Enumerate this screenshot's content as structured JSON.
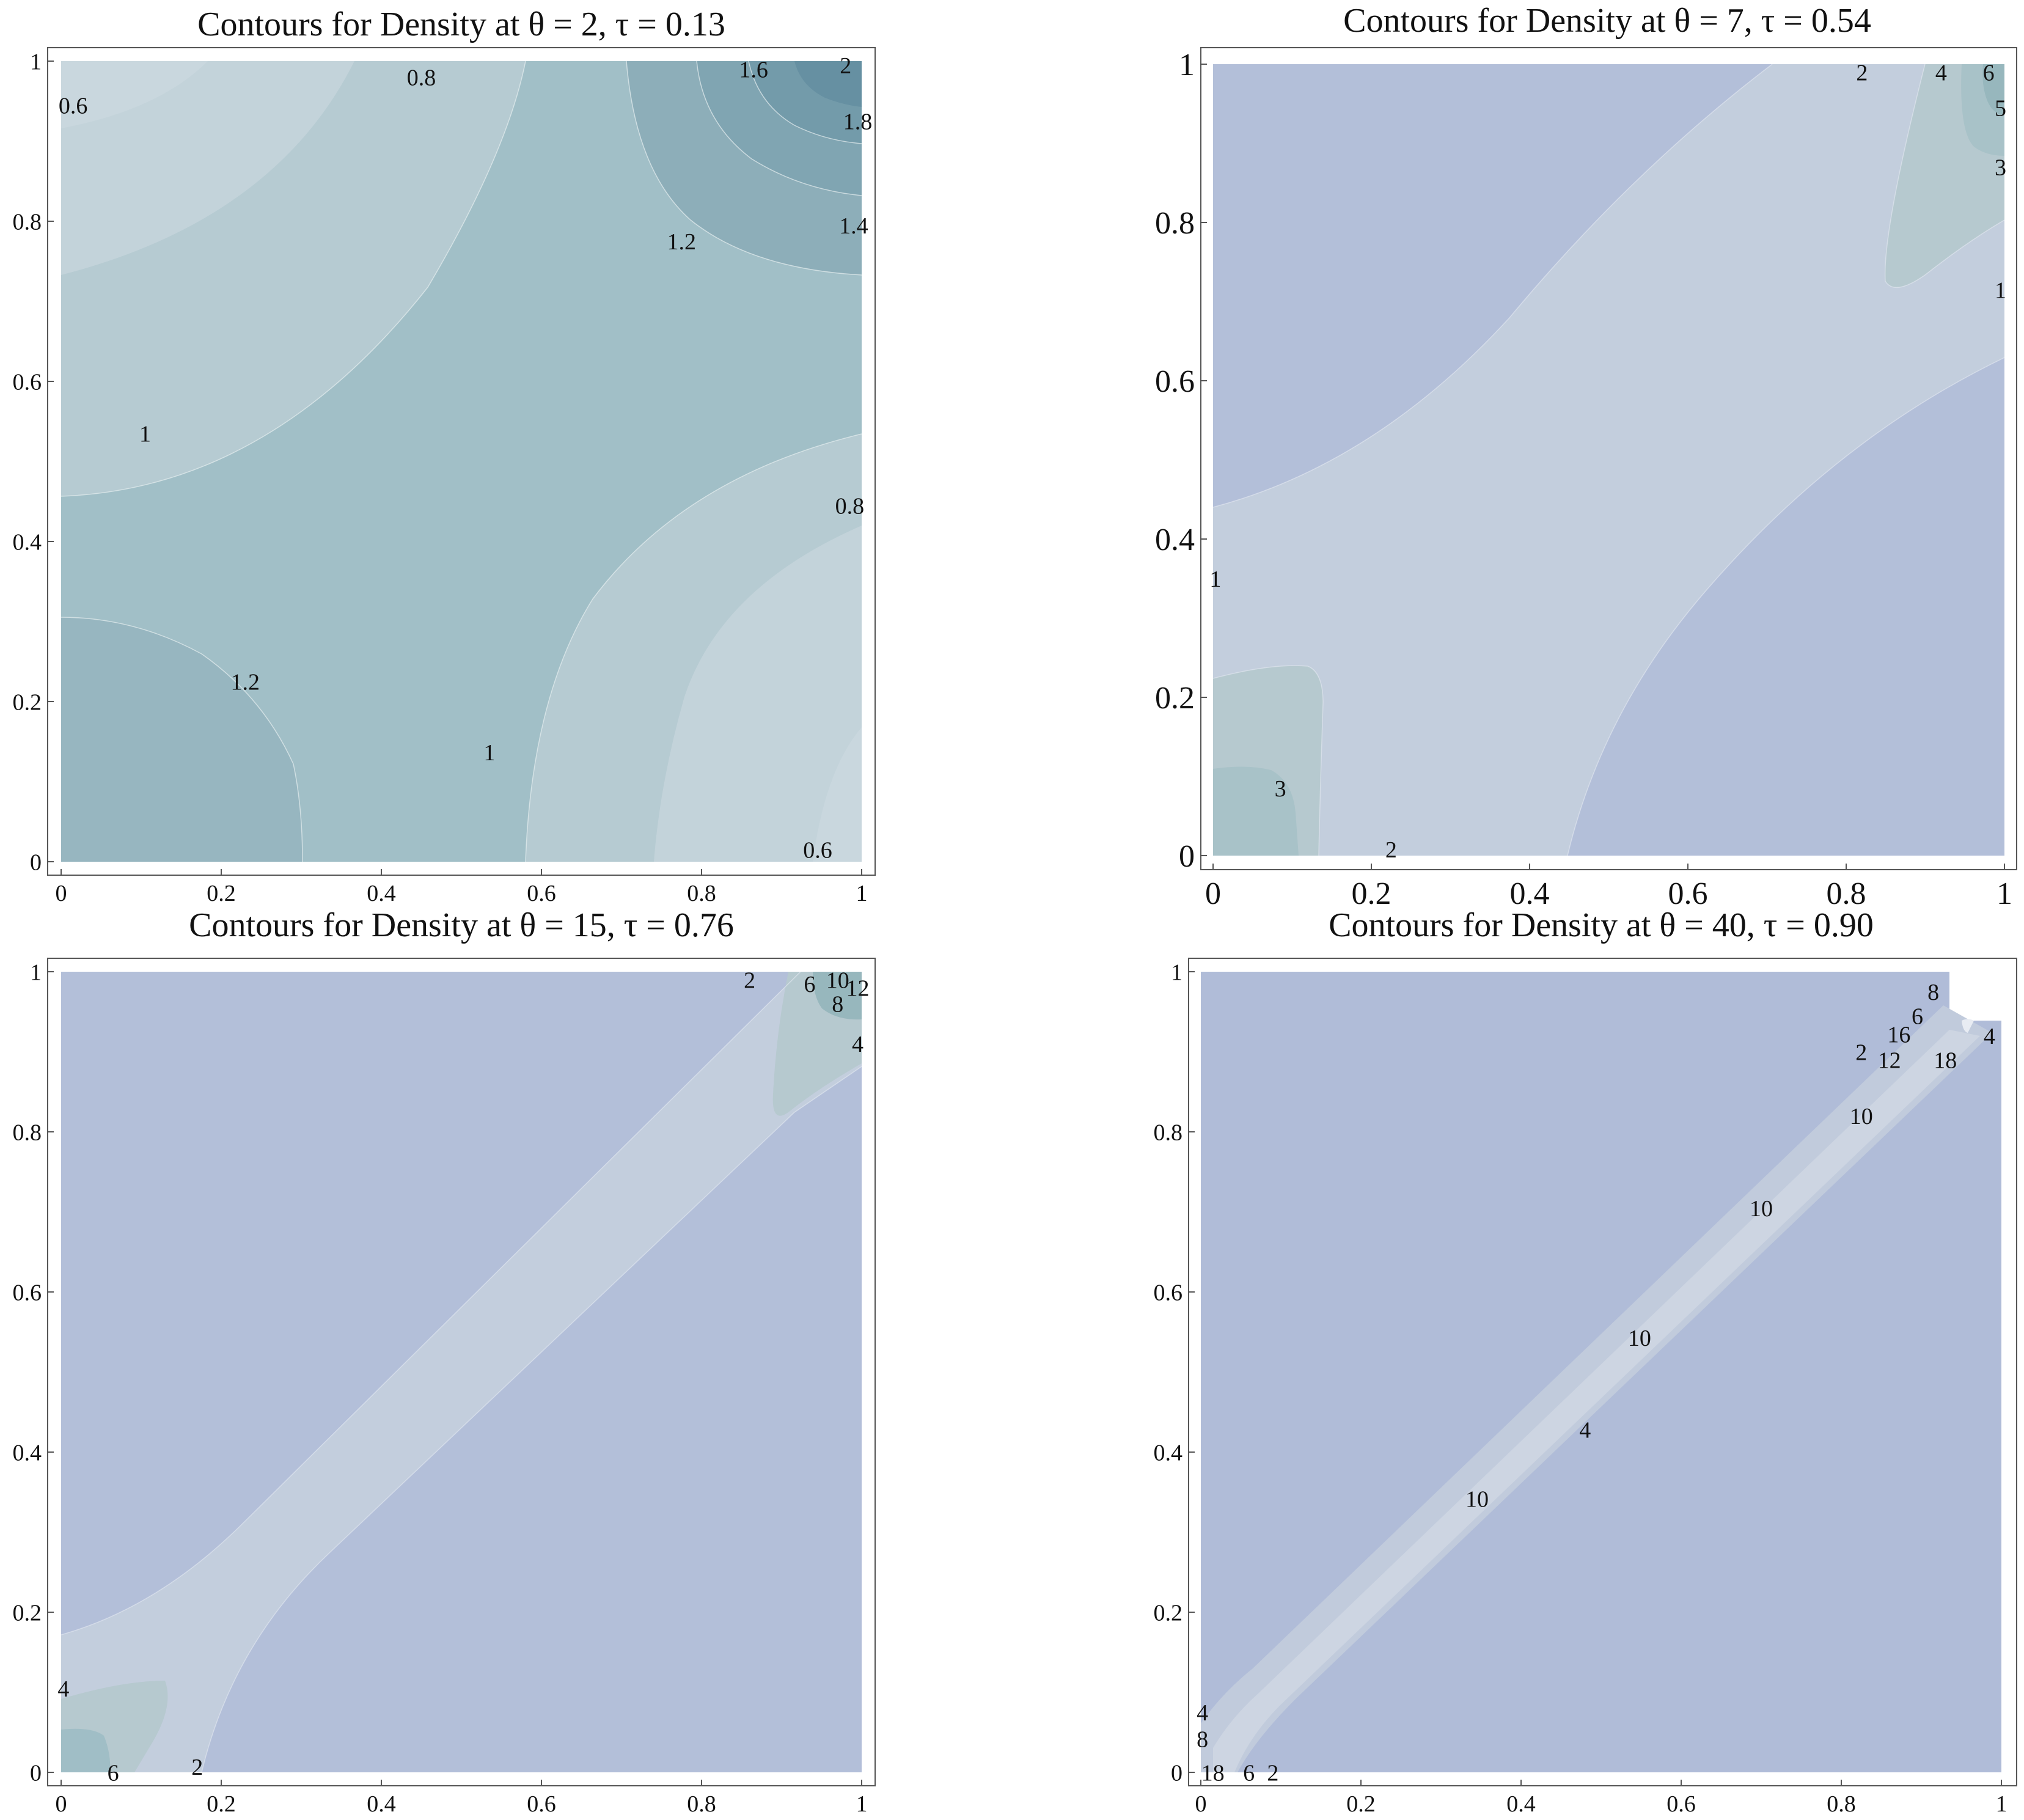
{
  "chart_data": [
    {
      "type": "contour",
      "title": "Contours for Density at θ = 2, τ = 0.13",
      "theta": 2,
      "tau": 0.13,
      "xlim": [
        0,
        1
      ],
      "ylim": [
        0,
        1
      ],
      "xticks": [
        "0",
        "0.2",
        "0.4",
        "0.6",
        "0.8",
        "1"
      ],
      "yticks": [
        "0",
        "0.2",
        "0.4",
        "0.6",
        "0.8",
        "1"
      ],
      "levels": [
        "0.6",
        "0.8",
        "1",
        "1.2",
        "1.4",
        "1.6",
        "1.8",
        "2"
      ],
      "contour_labels": [
        {
          "text": "0.6",
          "x": 0.015,
          "y": 0.945
        },
        {
          "text": "0.8",
          "x": 0.45,
          "y": 0.98
        },
        {
          "text": "1.6",
          "x": 0.865,
          "y": 0.99
        },
        {
          "text": "2",
          "x": 0.98,
          "y": 0.995
        },
        {
          "text": "1.8",
          "x": 0.995,
          "y": 0.925
        },
        {
          "text": "1.4",
          "x": 0.99,
          "y": 0.795
        },
        {
          "text": "1.2",
          "x": 0.775,
          "y": 0.775
        },
        {
          "text": "1",
          "x": 0.105,
          "y": 0.535
        },
        {
          "text": "0.8",
          "x": 0.985,
          "y": 0.445
        },
        {
          "text": "1.2",
          "x": 0.23,
          "y": 0.225
        },
        {
          "text": "1",
          "x": 0.535,
          "y": 0.137
        },
        {
          "text": "0.6",
          "x": 0.945,
          "y": 0.015
        }
      ]
    },
    {
      "type": "contour",
      "title": "Contours for Density at θ = 7, τ = 0.54",
      "theta": 7,
      "tau": 0.54,
      "xlim": [
        0,
        1
      ],
      "ylim": [
        0,
        1
      ],
      "xticks": [
        "0",
        "0.2",
        "0.4",
        "0.6",
        "0.8",
        "1"
      ],
      "yticks": [
        "0",
        "0.2",
        "0.4",
        "0.6",
        "0.8",
        "1"
      ],
      "levels": [
        "1",
        "2",
        "3",
        "4",
        "5",
        "6"
      ],
      "contour_labels": [
        {
          "text": "2",
          "x": 0.82,
          "y": 0.99
        },
        {
          "text": "4",
          "x": 0.92,
          "y": 0.99
        },
        {
          "text": "6",
          "x": 0.98,
          "y": 0.99
        },
        {
          "text": "5",
          "x": 0.995,
          "y": 0.945
        },
        {
          "text": "3",
          "x": 0.995,
          "y": 0.87
        },
        {
          "text": "1",
          "x": 0.995,
          "y": 0.715
        },
        {
          "text": "1",
          "x": 0.003,
          "y": 0.35
        },
        {
          "text": "3",
          "x": 0.085,
          "y": 0.085
        },
        {
          "text": "2",
          "x": 0.225,
          "y": 0.008
        }
      ]
    },
    {
      "type": "contour",
      "title": "Contours for Density at θ = 15, τ = 0.76",
      "theta": 15,
      "tau": 0.76,
      "xlim": [
        0,
        1
      ],
      "ylim": [
        0,
        1
      ],
      "xticks": [
        "0",
        "0.2",
        "0.4",
        "0.6",
        "0.8",
        "1"
      ],
      "yticks": [
        "0",
        "0.2",
        "0.4",
        "0.6",
        "0.8",
        "1"
      ],
      "levels": [
        "2",
        "4",
        "6",
        "8",
        "10",
        "12"
      ],
      "contour_labels": [
        {
          "text": "2",
          "x": 0.86,
          "y": 0.99
        },
        {
          "text": "6",
          "x": 0.935,
          "y": 0.985
        },
        {
          "text": "10",
          "x": 0.97,
          "y": 0.99
        },
        {
          "text": "12",
          "x": 0.995,
          "y": 0.98
        },
        {
          "text": "8",
          "x": 0.97,
          "y": 0.96
        },
        {
          "text": "4",
          "x": 0.995,
          "y": 0.91
        },
        {
          "text": "4",
          "x": 0.003,
          "y": 0.105
        },
        {
          "text": "6",
          "x": 0.065,
          "y": 0.0
        },
        {
          "text": "2",
          "x": 0.17,
          "y": 0.007
        }
      ]
    },
    {
      "type": "contour",
      "title": "Contours for Density at θ = 40, τ = 0.90",
      "theta": 40,
      "tau": 0.9,
      "xlim": [
        0,
        1
      ],
      "ylim": [
        0,
        1
      ],
      "xticks": [
        "0",
        "0.2",
        "0.4",
        "0.6",
        "0.8",
        "1"
      ],
      "yticks": [
        "0",
        "0.2",
        "0.4",
        "0.6",
        "0.8",
        "1"
      ],
      "levels": [
        "2",
        "4",
        "6",
        "8",
        "10",
        "12",
        "16",
        "18"
      ],
      "contour_labels": [
        {
          "text": "8",
          "x": 0.915,
          "y": 0.975
        },
        {
          "text": "6",
          "x": 0.895,
          "y": 0.945
        },
        {
          "text": "16",
          "x": 0.872,
          "y": 0.922
        },
        {
          "text": "4",
          "x": 0.985,
          "y": 0.92
        },
        {
          "text": "2",
          "x": 0.825,
          "y": 0.9
        },
        {
          "text": "12",
          "x": 0.86,
          "y": 0.89
        },
        {
          "text": "18",
          "x": 0.93,
          "y": 0.89
        },
        {
          "text": "10",
          "x": 0.825,
          "y": 0.82
        },
        {
          "text": "10",
          "x": 0.7,
          "y": 0.705
        },
        {
          "text": "10",
          "x": 0.548,
          "y": 0.543
        },
        {
          "text": "4",
          "x": 0.48,
          "y": 0.428
        },
        {
          "text": "10",
          "x": 0.345,
          "y": 0.342
        },
        {
          "text": "4",
          "x": 0.002,
          "y": 0.075
        },
        {
          "text": "8",
          "x": 0.002,
          "y": 0.042
        },
        {
          "text": "18",
          "x": 0.015,
          "y": 0.0
        },
        {
          "text": "6",
          "x": 0.06,
          "y": 0.0
        },
        {
          "text": "2",
          "x": 0.09,
          "y": 0.0
        }
      ]
    }
  ]
}
